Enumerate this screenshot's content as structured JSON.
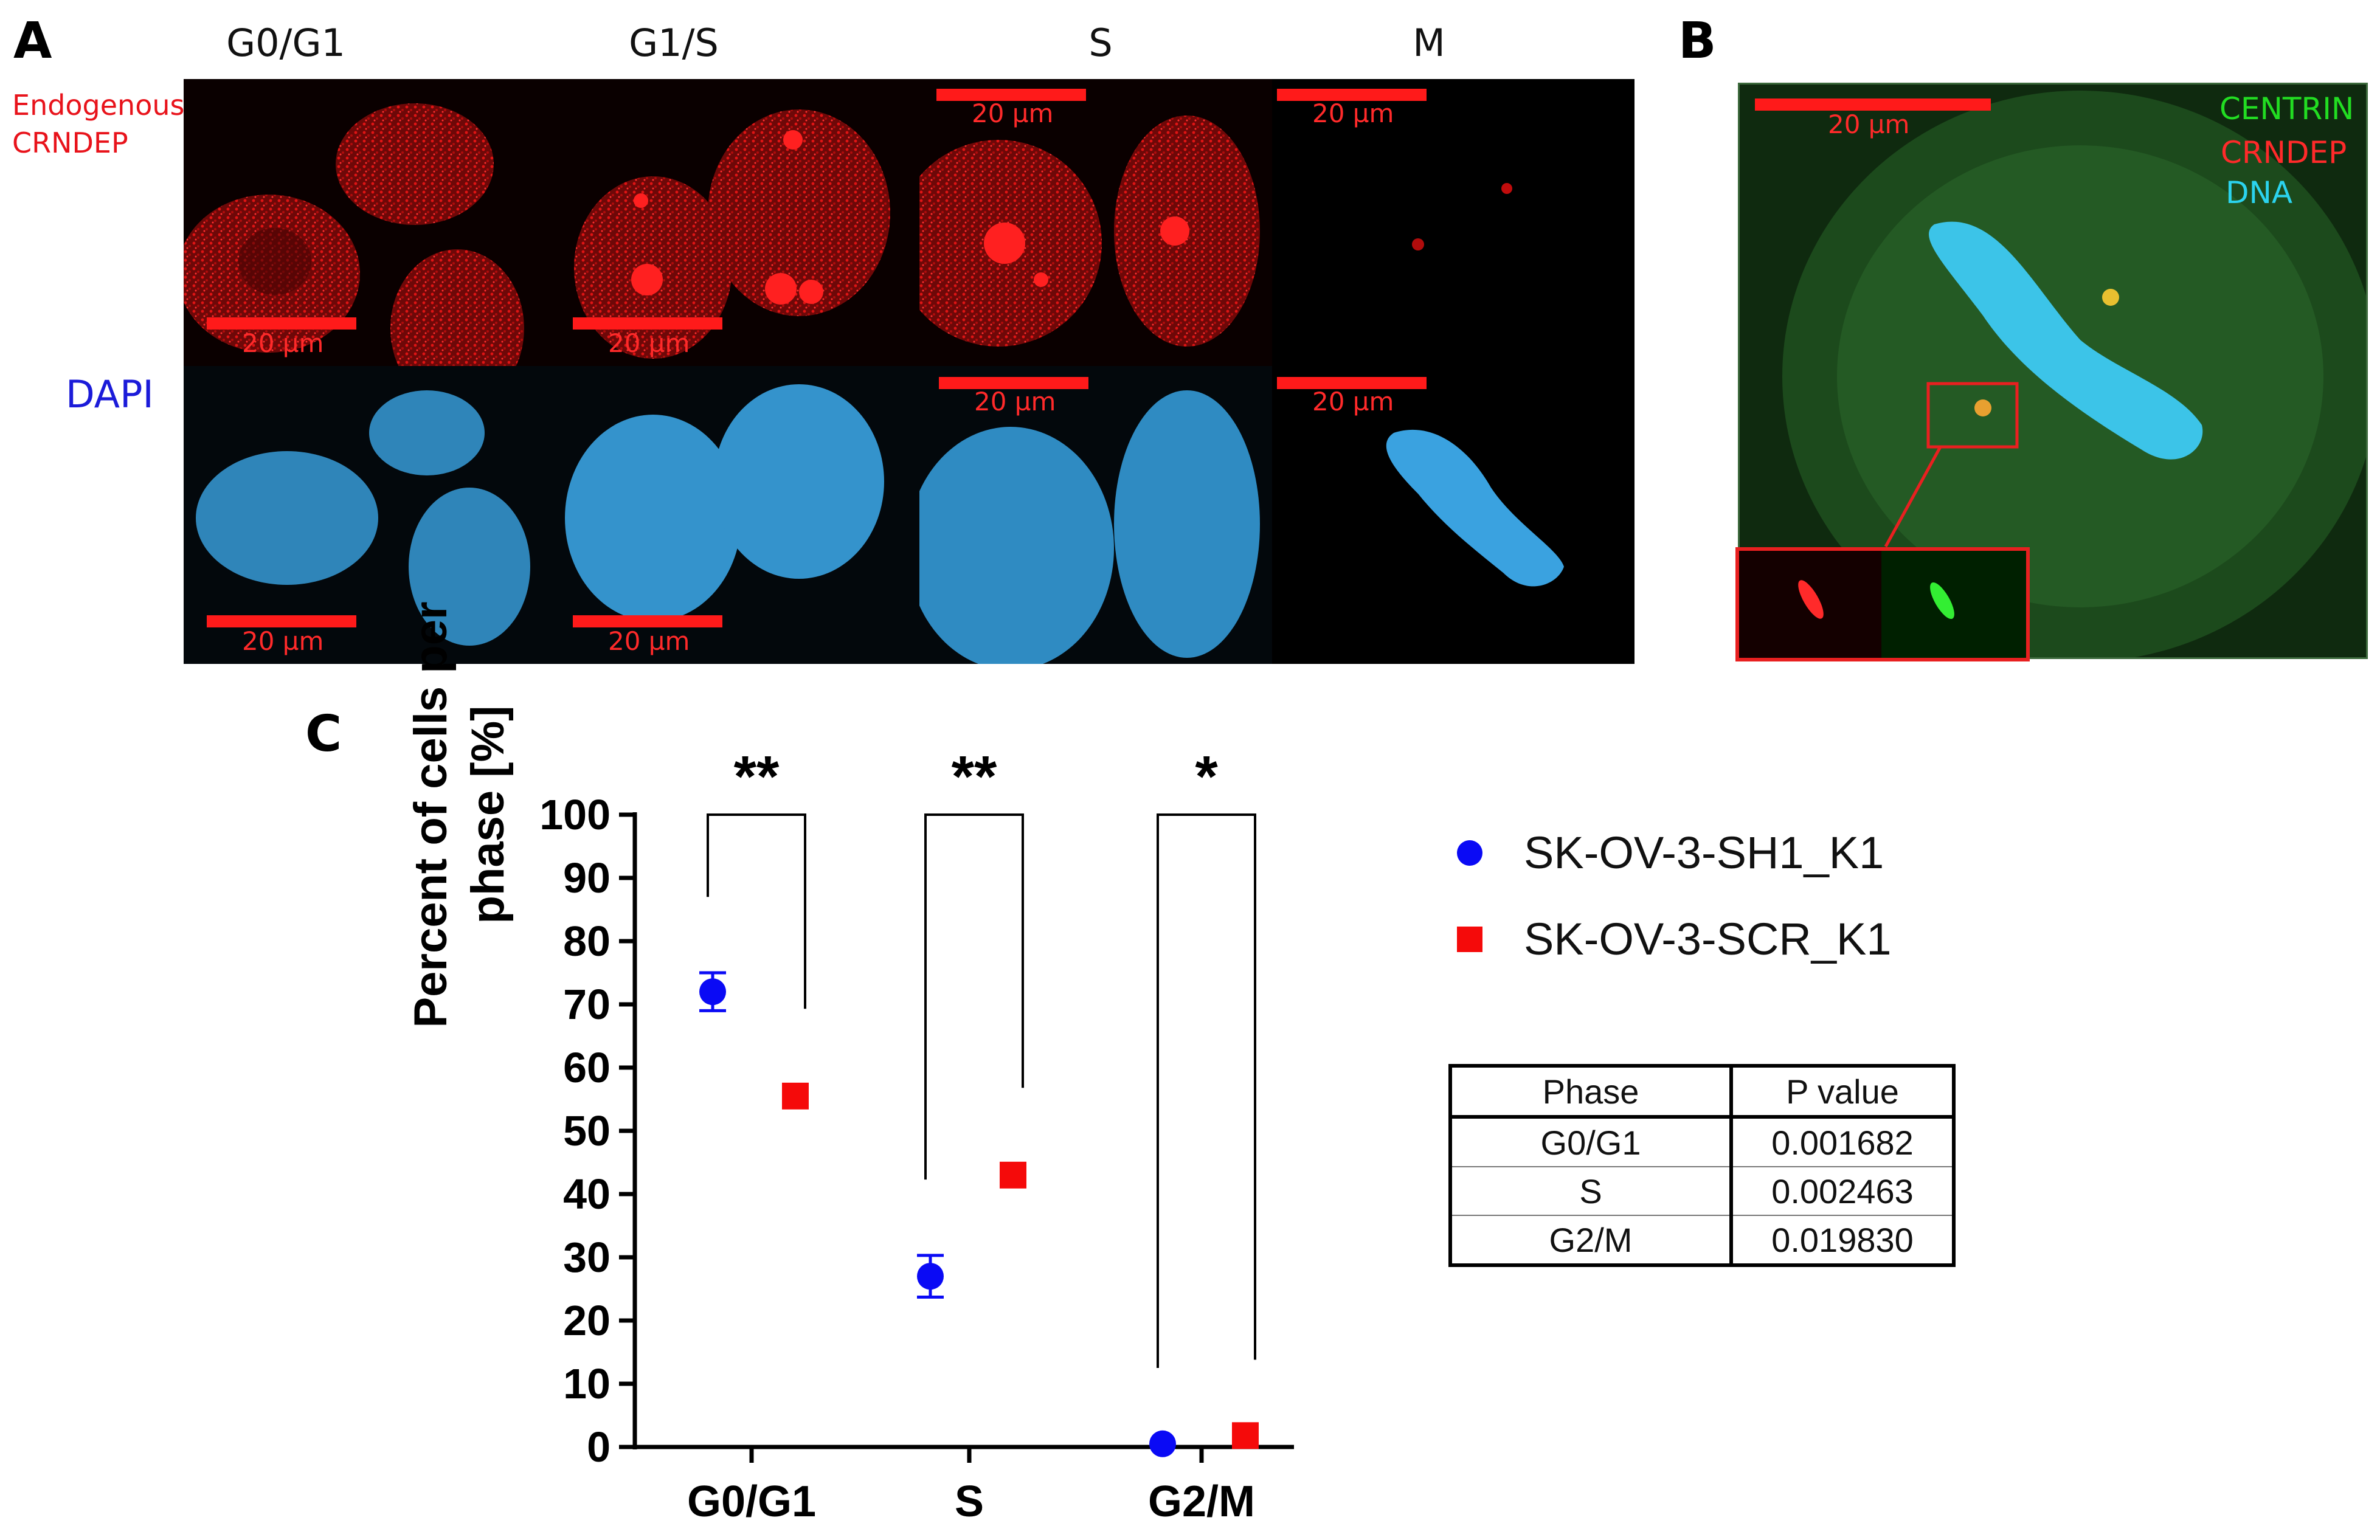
{
  "panel_a": {
    "letter": "A",
    "columns": [
      "G0/G1",
      "G1/S",
      "S",
      "M"
    ],
    "row_label_red": [
      "Endogenous",
      "CRNDEP"
    ],
    "row_label_blue": "DAPI",
    "scale_label": "20 µm",
    "colors": {
      "red_channel": "#ff1a1a",
      "dapi_channel": "#3fa9e6",
      "row_red_label": "#e8131b",
      "row_blue_label": "#1b1bd9"
    }
  },
  "panel_b": {
    "letter": "B",
    "scale_label": "20 µm",
    "channels": [
      {
        "label": "CENTRIN",
        "color": "#22dd22"
      },
      {
        "label": "CRNDEP",
        "color": "#ff2a2a"
      },
      {
        "label": "DNA",
        "color": "#2bd3ee"
      }
    ]
  },
  "panel_c": {
    "letter": "C",
    "significance": [
      "**",
      "**",
      "*"
    ],
    "legend": [
      {
        "label": "SK-OV-3-SH1_K1",
        "color": "#0a0af5",
        "marker": "circle"
      },
      {
        "label": "SK-OV-3-SCR_K1",
        "color": "#f50a0a",
        "marker": "square"
      }
    ],
    "table": {
      "headers": [
        "Phase",
        "P value"
      ],
      "rows": [
        [
          "G0/G1",
          "0.001682"
        ],
        [
          "S",
          "0.002463"
        ],
        [
          "G2/M",
          "0.019830"
        ]
      ]
    }
  },
  "chart_data": {
    "type": "scatter",
    "title": "",
    "xlabel": "",
    "ylabel": "Percent of cells per phase  [%]",
    "ylabel_lines": [
      "Percent of cells per",
      "phase  [%]"
    ],
    "categories": [
      "G0/G1",
      "S",
      "G2/M"
    ],
    "ylim": [
      0,
      100
    ],
    "yticks": [
      0,
      10,
      20,
      30,
      40,
      50,
      60,
      70,
      80,
      90,
      100
    ],
    "grid": false,
    "legend_position": "right",
    "series": [
      {
        "name": "SK-OV-3-SH1_K1",
        "marker": "circle",
        "color": "#0a0af5",
        "values": [
          72,
          27,
          0.5
        ],
        "err": [
          3,
          3.3,
          0
        ]
      },
      {
        "name": "SK-OV-3-SCR_K1",
        "marker": "square",
        "color": "#f50a0a",
        "values": [
          55.5,
          43,
          1.8
        ],
        "err": [
          1.8,
          1.8,
          0
        ]
      }
    ]
  }
}
